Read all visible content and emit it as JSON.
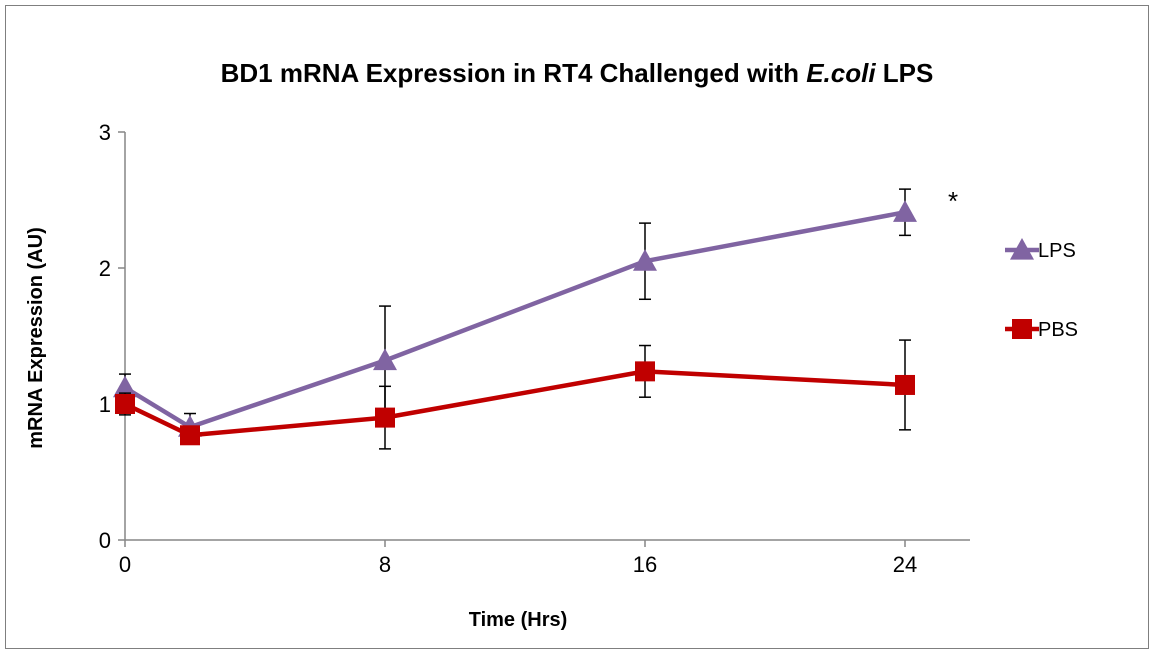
{
  "chart_data": {
    "type": "line",
    "title": {
      "prefix": "BD1 mRNA Expression in RT4 Challenged with ",
      "italic": "E.coli",
      "suffix": " LPS"
    },
    "xlabel": "Time (Hrs)",
    "ylabel": "mRNA Expression (AU)",
    "x": [
      0,
      2,
      8,
      16,
      24
    ],
    "x_ticks": [
      0,
      8,
      16,
      24
    ],
    "y_ticks": [
      0,
      1,
      2,
      3
    ],
    "xlim": [
      0,
      26
    ],
    "ylim": [
      0,
      3
    ],
    "grid": false,
    "legend_position": "right",
    "series": [
      {
        "name": "LPS",
        "color": "#8064A2",
        "marker": "triangle",
        "values": [
          1.12,
          0.83,
          1.32,
          2.05,
          2.41
        ],
        "errors": [
          0.1,
          0.1,
          0.4,
          0.28,
          0.17
        ]
      },
      {
        "name": "PBS",
        "color": "#C00000",
        "marker": "square",
        "values": [
          1.0,
          0.77,
          0.9,
          1.24,
          1.14
        ],
        "errors": [
          0.08,
          0.05,
          0.23,
          0.19,
          0.33
        ]
      }
    ],
    "annotations": [
      {
        "text": "*",
        "x": 24,
        "series": "LPS"
      }
    ]
  }
}
